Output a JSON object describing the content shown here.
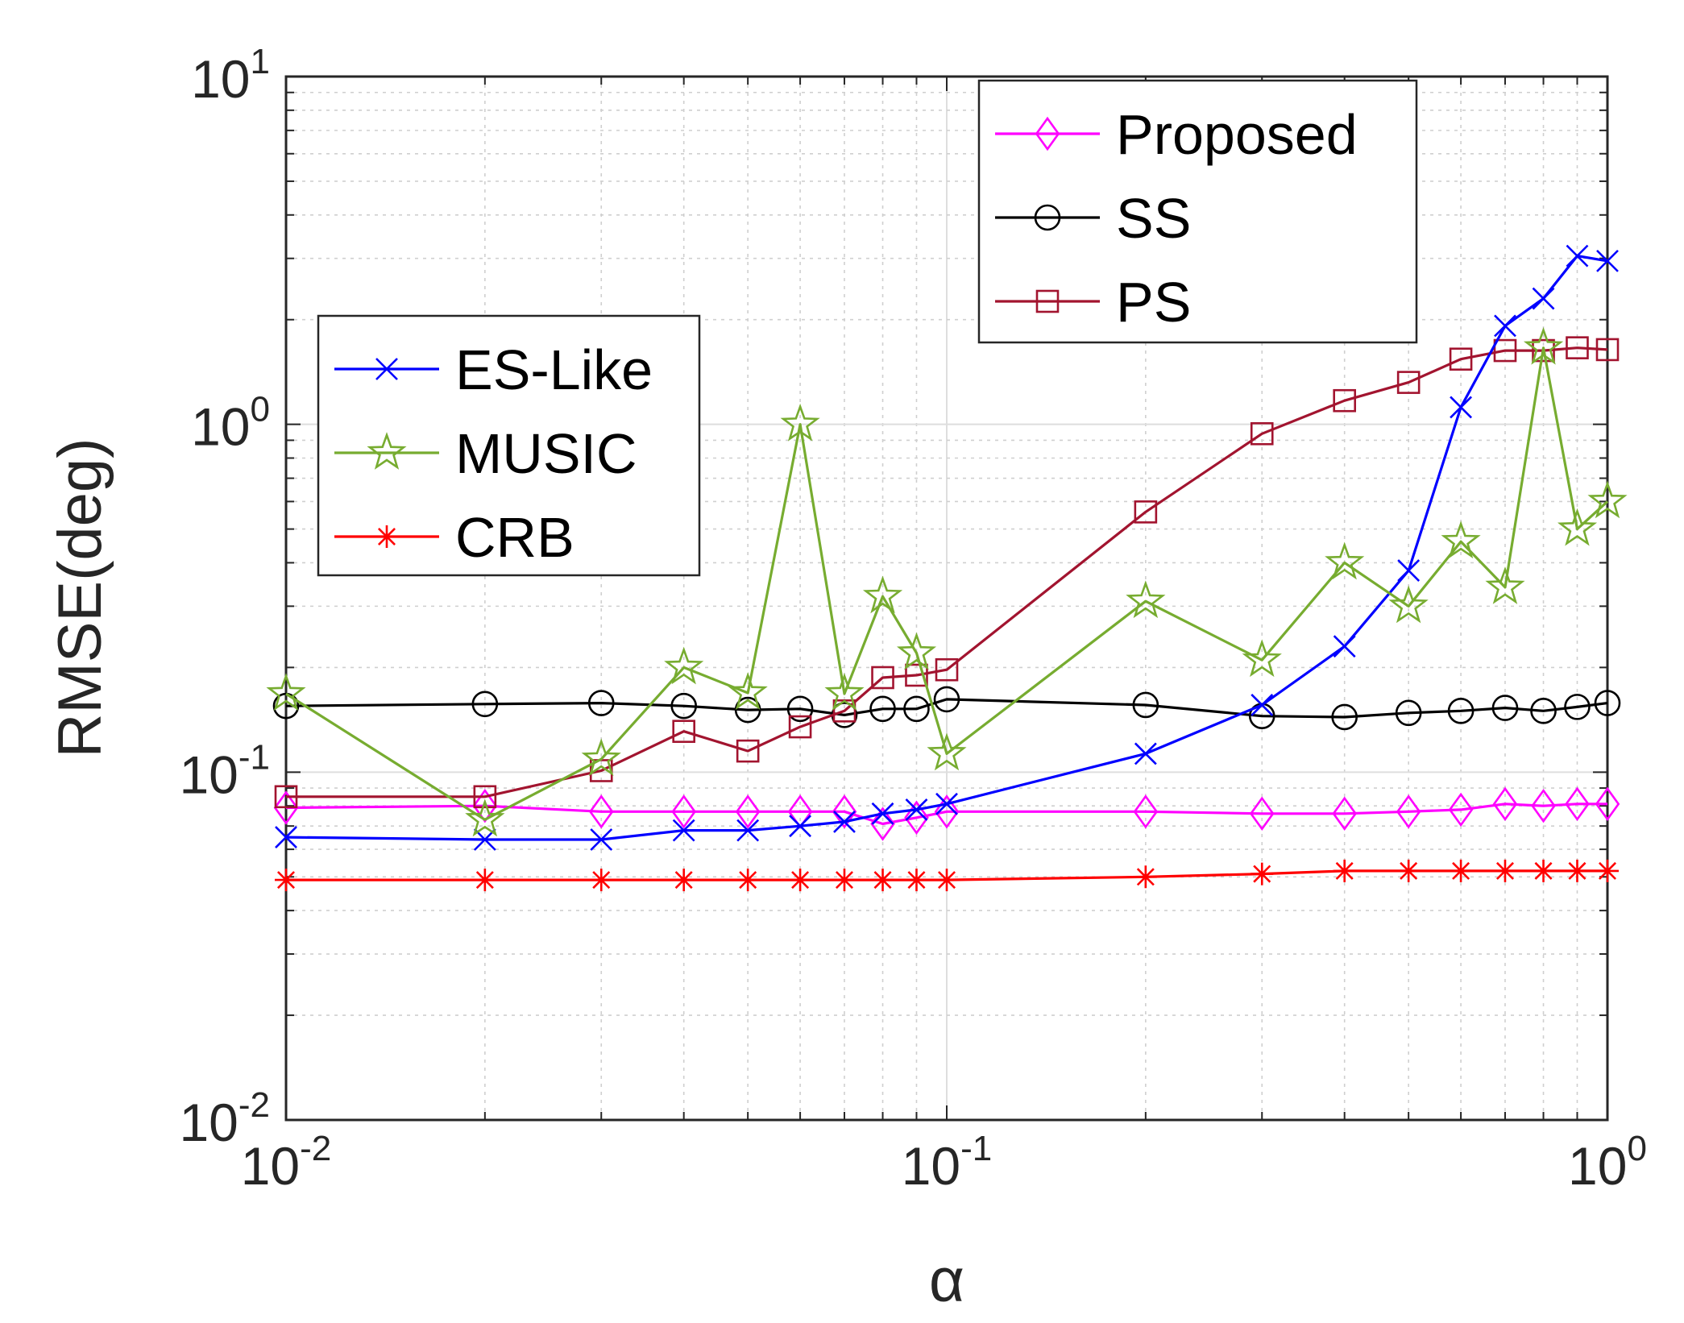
{
  "chart_data": {
    "type": "line",
    "xlabel": "α",
    "ylabel": "RMSE(deg)",
    "x_scale": "log",
    "y_scale": "log",
    "xlim": [
      0.01,
      1
    ],
    "ylim": [
      0.01,
      10
    ],
    "grid": true,
    "x_ticks": [
      {
        "base": "10",
        "exp": "-2",
        "value": 0.01
      },
      {
        "base": "10",
        "exp": "-1",
        "value": 0.1
      },
      {
        "base": "10",
        "exp": "0",
        "value": 1
      }
    ],
    "y_ticks": [
      {
        "base": "10",
        "exp": "-2",
        "value": 0.01
      },
      {
        "base": "10",
        "exp": "-1",
        "value": 0.1
      },
      {
        "base": "10",
        "exp": "0",
        "value": 1
      },
      {
        "base": "10",
        "exp": "1",
        "value": 10
      }
    ],
    "x": [
      0.01,
      0.02,
      0.03,
      0.04,
      0.05,
      0.06,
      0.07,
      0.08,
      0.09,
      0.1,
      0.2,
      0.3,
      0.4,
      0.5,
      0.6,
      0.7,
      0.8,
      0.9,
      1.0
    ],
    "legends": [
      {
        "placement": "top-right",
        "series": [
          "Proposed",
          "SS",
          "PS"
        ]
      },
      {
        "placement": "middle-left",
        "series": [
          "ES-Like",
          "MUSIC",
          "CRB"
        ]
      }
    ],
    "series": [
      {
        "name": "Proposed",
        "color": "#ff00ff",
        "marker": "diamond",
        "values": [
          0.079,
          0.08,
          0.077,
          0.077,
          0.077,
          0.077,
          0.077,
          0.071,
          0.074,
          0.077,
          0.077,
          0.076,
          0.076,
          0.077,
          0.078,
          0.081,
          0.08,
          0.081,
          0.081
        ]
      },
      {
        "name": "SS",
        "color": "#000000",
        "marker": "circle",
        "values": [
          0.155,
          0.157,
          0.158,
          0.155,
          0.151,
          0.152,
          0.146,
          0.152,
          0.152,
          0.162,
          0.156,
          0.145,
          0.144,
          0.148,
          0.15,
          0.153,
          0.15,
          0.154,
          0.158
        ]
      },
      {
        "name": "PS",
        "color": "#a2142f",
        "marker": "square",
        "values": [
          0.085,
          0.085,
          0.101,
          0.131,
          0.115,
          0.135,
          0.15,
          0.187,
          0.19,
          0.197,
          0.56,
          0.94,
          1.17,
          1.32,
          1.54,
          1.63,
          1.63,
          1.66,
          1.64
        ]
      },
      {
        "name": "ES-Like",
        "color": "#0000ff",
        "marker": "x",
        "values": [
          0.065,
          0.064,
          0.064,
          0.068,
          0.068,
          0.07,
          0.072,
          0.076,
          0.078,
          0.081,
          0.113,
          0.156,
          0.23,
          0.38,
          1.12,
          1.92,
          2.3,
          3.05,
          2.95
        ]
      },
      {
        "name": "MUSIC",
        "color": "#77ac30",
        "marker": "pentagram",
        "values": [
          0.168,
          0.073,
          0.109,
          0.2,
          0.169,
          1.0,
          0.168,
          0.32,
          0.22,
          0.113,
          0.31,
          0.21,
          0.4,
          0.3,
          0.46,
          0.34,
          1.66,
          0.5,
          0.6
        ]
      },
      {
        "name": "CRB",
        "color": "#ff0000",
        "marker": "asterisk",
        "values": [
          0.049,
          0.049,
          0.049,
          0.049,
          0.049,
          0.049,
          0.049,
          0.049,
          0.049,
          0.049,
          0.05,
          0.051,
          0.052,
          0.052,
          0.052,
          0.052,
          0.052,
          0.052,
          0.052
        ]
      }
    ]
  }
}
